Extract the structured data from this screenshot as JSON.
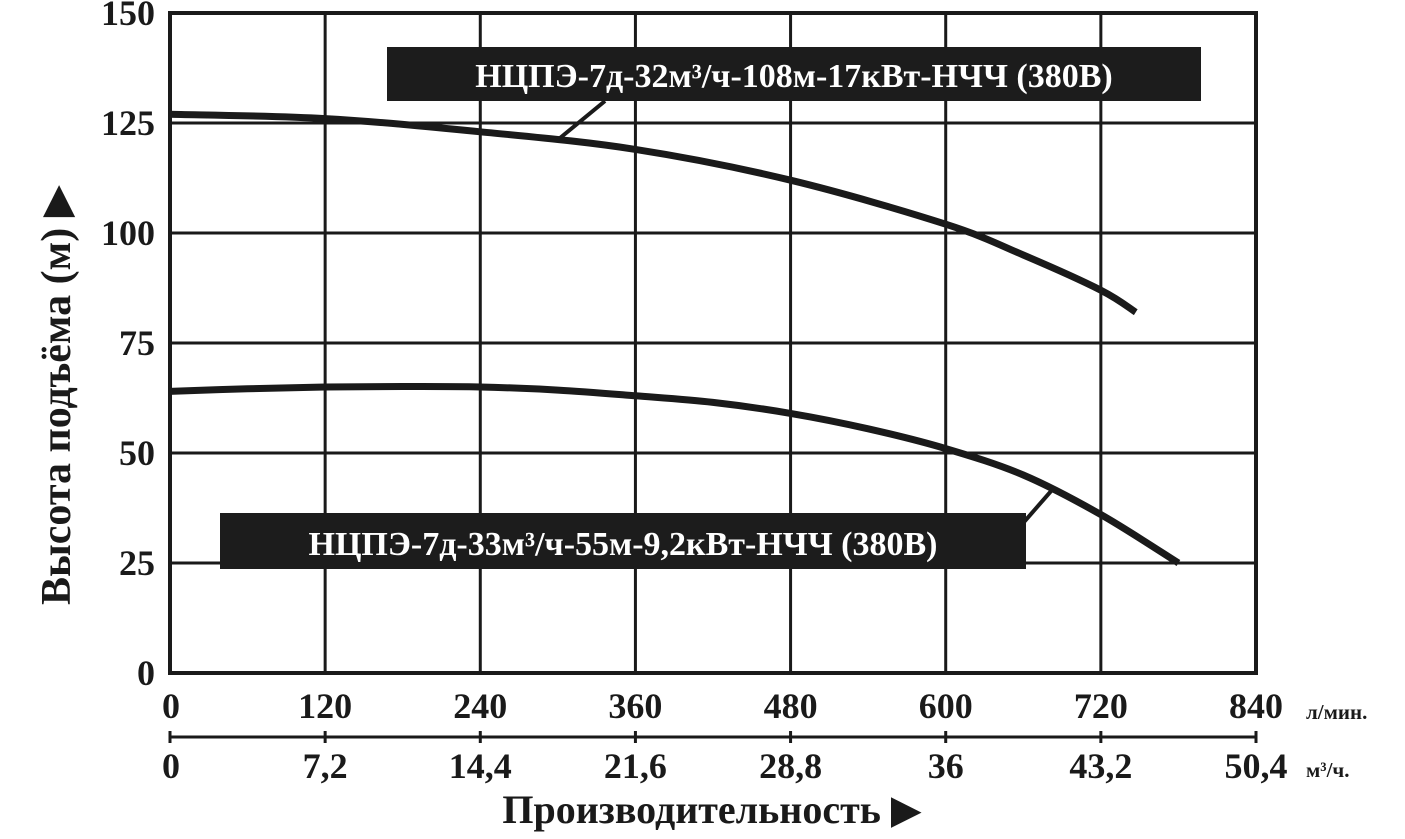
{
  "chart_data": {
    "type": "line",
    "ylabel": "Высота подъёма (м) ▶",
    "xlabel": "Производительность ▶",
    "x_unit_primary": "л/мин.",
    "x_unit_secondary": "м³/ч.",
    "xlim": [
      0,
      840
    ],
    "ylim": [
      0,
      150
    ],
    "grid": true,
    "x_ticks": [
      0,
      120,
      240,
      360,
      480,
      600,
      720,
      840
    ],
    "x_tick_labels": [
      "0",
      "120",
      "240",
      "360",
      "480",
      "600",
      "720",
      "840"
    ],
    "x2_tick_labels": [
      "0",
      "7,2",
      "14,4",
      "21,6",
      "28,8",
      "36",
      "43,2",
      "50,4"
    ],
    "y_ticks": [
      0,
      25,
      50,
      75,
      100,
      125,
      150
    ],
    "y_tick_labels": [
      "0",
      "25",
      "50",
      "75",
      "100",
      "125",
      "150"
    ],
    "series": [
      {
        "name": "НЦПЭ-7д-32м³/ч-108м-17кВт-НЧЧ (380В)",
        "x": [
          0,
          120,
          240,
          360,
          480,
          600,
          660,
          720,
          747
        ],
        "y": [
          127,
          126,
          123,
          119,
          112,
          102,
          95,
          87,
          82
        ]
      },
      {
        "name": "НЦПЭ-7д-33м³/ч-55м-9,2кВт-НЧЧ (380В)",
        "x": [
          0,
          60,
          120,
          180,
          240,
          300,
          360,
          420,
          480,
          540,
          600,
          660,
          720,
          780
        ],
        "y": [
          64,
          64.6,
          65,
          65.1,
          65,
          64.3,
          63,
          61.5,
          59,
          55.5,
          51,
          45,
          36,
          25
        ]
      }
    ]
  }
}
